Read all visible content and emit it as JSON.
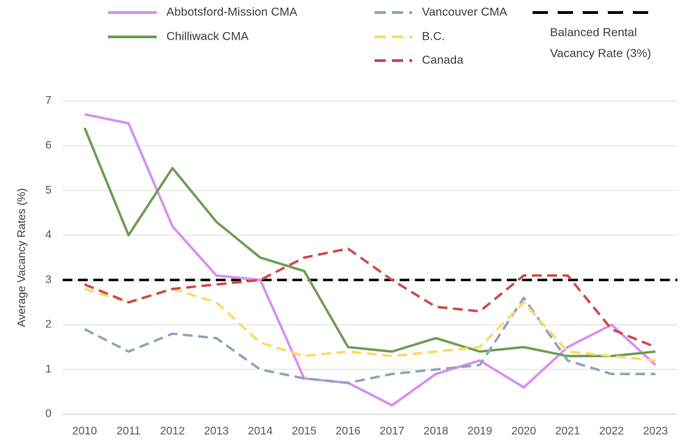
{
  "chart_data": {
    "type": "line",
    "y_label": "Average Vacancy Rates (%)",
    "categories": [
      "2010",
      "2011",
      "2012",
      "2013",
      "2014",
      "2015",
      "2016",
      "2017",
      "2018",
      "2019",
      "2020",
      "2021",
      "2022",
      "2023"
    ],
    "series": [
      {
        "name": "Abbotsford-Mission CMA",
        "color": "#d98ef2",
        "style": "solid",
        "values": [
          6.7,
          6.5,
          4.2,
          3.1,
          3.0,
          0.8,
          0.7,
          0.2,
          0.9,
          1.2,
          0.6,
          1.5,
          2.0,
          1.1
        ]
      },
      {
        "name": "Chilliwack CMA",
        "color": "#6f9d55",
        "style": "solid",
        "values": [
          6.4,
          4.0,
          5.5,
          4.3,
          3.5,
          3.2,
          1.5,
          1.4,
          1.7,
          1.4,
          1.5,
          1.3,
          1.3,
          1.4
        ]
      },
      {
        "name": "Vancouver CMA",
        "color": "#8ea5bd",
        "style": "dashed",
        "values": [
          1.9,
          1.4,
          1.8,
          1.7,
          1.0,
          0.8,
          0.7,
          0.9,
          1.0,
          1.1,
          2.6,
          1.2,
          0.9,
          0.9
        ]
      },
      {
        "name": "B.C.",
        "color": "#ffd966",
        "style": "dashed",
        "values": [
          2.8,
          2.5,
          2.8,
          2.5,
          1.6,
          1.3,
          1.4,
          1.3,
          1.4,
          1.5,
          2.5,
          1.4,
          1.3,
          1.2
        ]
      },
      {
        "name": "Canada",
        "color": "#d04a4a",
        "style": "dashed",
        "values": [
          2.9,
          2.5,
          2.8,
          2.9,
          3.0,
          3.5,
          3.7,
          3.0,
          2.4,
          2.3,
          3.1,
          3.1,
          1.9,
          1.5
        ]
      }
    ],
    "reference_line": {
      "name": "Balanced Rental Vacancy Rate (3%)",
      "value": 3,
      "color": "#000000",
      "style": "dashed"
    },
    "ylim": [
      0,
      7
    ],
    "yticks": [
      0,
      1,
      2,
      3,
      4,
      5,
      6,
      7
    ],
    "grid": true
  }
}
